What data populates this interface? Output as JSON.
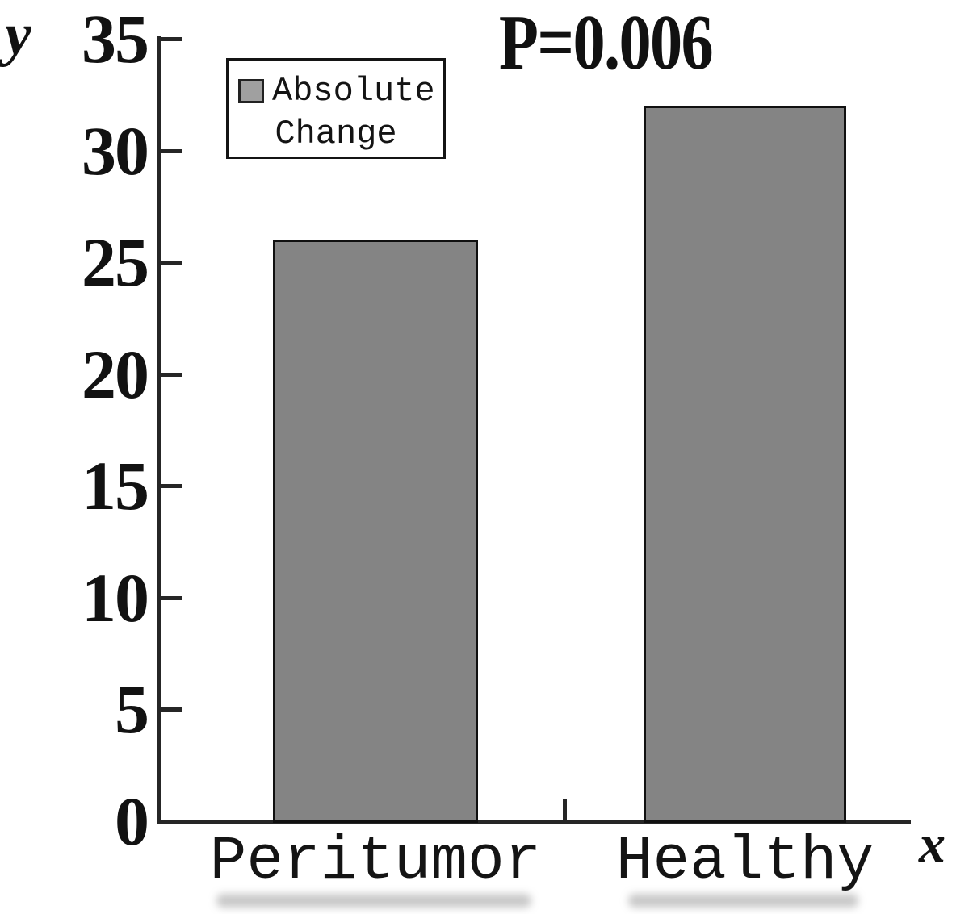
{
  "chart_data": {
    "type": "bar",
    "categories": [
      "Peritumor",
      "Healthy"
    ],
    "values": [
      26,
      32
    ],
    "series": [
      {
        "name": "Absolute Change",
        "values": [
          26,
          32
        ]
      }
    ],
    "title": "",
    "annotation": "P=0.006",
    "xlabel": "x",
    "ylabel": "y",
    "ylim": [
      0,
      35
    ],
    "yticks": [
      0,
      5,
      10,
      15,
      20,
      25,
      30,
      35
    ],
    "grid": false,
    "legend_position": "upper-left",
    "legend_lines": [
      "Absolute",
      "Change"
    ],
    "colors": {
      "bar_fill": "#848484",
      "bar_border": "#101010",
      "axis": "#262626",
      "legend_swatch_fill": "#a0a0a0",
      "text": "#121212",
      "background": "#ffffff"
    }
  }
}
